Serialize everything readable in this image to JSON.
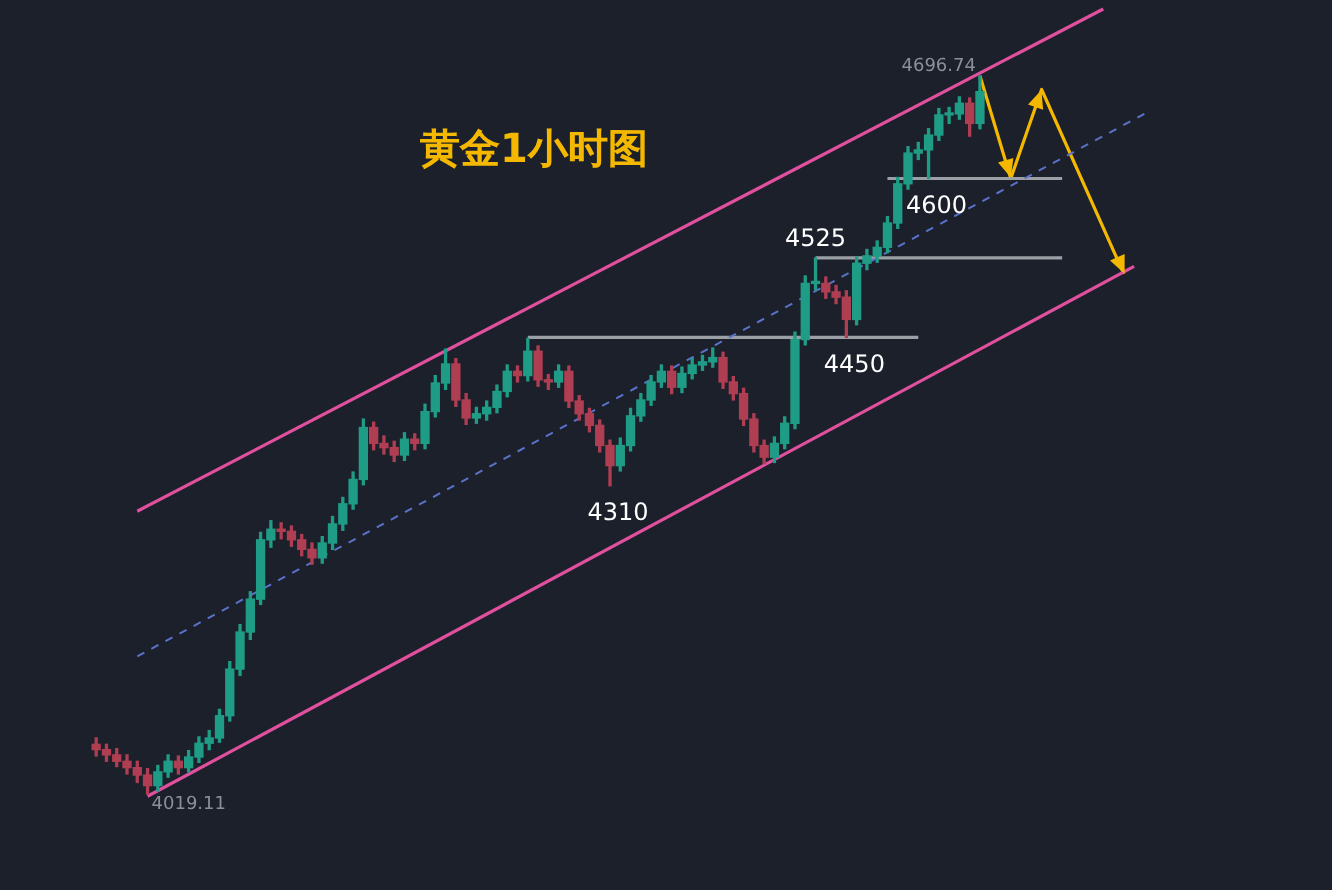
{
  "chart_data": {
    "type": "candlestick",
    "title": "黄金1小时图",
    "tick_labels": false,
    "legend": false,
    "categories": [
      null,
      null,
      null,
      null,
      null,
      null,
      null,
      null,
      null,
      null,
      null,
      null,
      null,
      null,
      null,
      null,
      null,
      null,
      null,
      null,
      null,
      null,
      null,
      null,
      null,
      null,
      null,
      null,
      null,
      null,
      null,
      null,
      null,
      null,
      null,
      null,
      null,
      null,
      null,
      null,
      null,
      null,
      null,
      null,
      null,
      null,
      null,
      null,
      null,
      null,
      null,
      null,
      null,
      null,
      null,
      null,
      null,
      null,
      null,
      null,
      null,
      null,
      null,
      null,
      null,
      null,
      null,
      null,
      null,
      null,
      null,
      null,
      null,
      null,
      null,
      null,
      null,
      null,
      null,
      null,
      null,
      null,
      null,
      null,
      null,
      null,
      null,
      null,
      null,
      null,
      null,
      null,
      null,
      null,
      null,
      null,
      null,
      null,
      null,
      null,
      null,
      null,
      null,
      null,
      null,
      null,
      null,
      null,
      null,
      null,
      null
    ],
    "ohlc": [
      [
        4066,
        4072,
        4055,
        4061
      ],
      [
        4061,
        4066,
        4050,
        4056
      ],
      [
        4056,
        4062,
        4045,
        4050
      ],
      [
        4050,
        4056,
        4038,
        4044
      ],
      [
        4044,
        4050,
        4030,
        4037
      ],
      [
        4037,
        4043,
        4019.11,
        4027
      ],
      [
        4027,
        4046,
        4022,
        4040
      ],
      [
        4040,
        4056,
        4035,
        4050
      ],
      [
        4050,
        4055,
        4038,
        4044
      ],
      [
        4044,
        4060,
        4040,
        4054
      ],
      [
        4054,
        4073,
        4049,
        4067
      ],
      [
        4067,
        4079,
        4061,
        4072
      ],
      [
        4072,
        4099,
        4068,
        4093
      ],
      [
        4093,
        4144,
        4088,
        4137
      ],
      [
        4137,
        4179,
        4131,
        4172
      ],
      [
        4172,
        4210,
        4165,
        4203
      ],
      [
        4203,
        4266,
        4198,
        4259
      ],
      [
        4259,
        4277,
        4252,
        4269
      ],
      [
        4269,
        4275,
        4260,
        4267
      ],
      [
        4267,
        4272,
        4253,
        4259
      ],
      [
        4259,
        4264,
        4244,
        4250
      ],
      [
        4250,
        4256,
        4236,
        4242
      ],
      [
        4242,
        4262,
        4237,
        4256
      ],
      [
        4256,
        4281,
        4250,
        4274
      ],
      [
        4274,
        4299,
        4268,
        4293
      ],
      [
        4293,
        4323,
        4288,
        4316
      ],
      [
        4316,
        4373,
        4311,
        4365
      ],
      [
        4365,
        4370,
        4344,
        4350
      ],
      [
        4350,
        4357,
        4340,
        4346
      ],
      [
        4346,
        4352,
        4333,
        4339
      ],
      [
        4339,
        4360,
        4334,
        4354
      ],
      [
        4354,
        4359,
        4344,
        4350
      ],
      [
        4350,
        4387,
        4345,
        4380
      ],
      [
        4380,
        4414,
        4375,
        4407
      ],
      [
        4407,
        4439,
        4401,
        4425
      ],
      [
        4425,
        4430,
        4385,
        4391
      ],
      [
        4391,
        4397,
        4368,
        4374
      ],
      [
        4374,
        4384,
        4369,
        4378
      ],
      [
        4378,
        4390,
        4372,
        4384
      ],
      [
        4384,
        4405,
        4379,
        4399
      ],
      [
        4399,
        4424,
        4394,
        4418
      ],
      [
        4418,
        4423,
        4408,
        4414
      ],
      [
        4414,
        4449,
        4409,
        4437
      ],
      [
        4437,
        4442,
        4404,
        4410
      ],
      [
        4410,
        4415,
        4401,
        4408
      ],
      [
        4408,
        4424,
        4403,
        4418
      ],
      [
        4418,
        4423,
        4384,
        4390
      ],
      [
        4390,
        4395,
        4372,
        4378
      ],
      [
        4378,
        4383,
        4361,
        4367
      ],
      [
        4367,
        4372,
        4342,
        4348
      ],
      [
        4348,
        4353,
        4310,
        4329
      ],
      [
        4329,
        4355,
        4324,
        4348
      ],
      [
        4348,
        4383,
        4343,
        4376
      ],
      [
        4376,
        4397,
        4371,
        4391
      ],
      [
        4391,
        4414,
        4386,
        4408
      ],
      [
        4408,
        4424,
        4403,
        4418
      ],
      [
        4418,
        4423,
        4397,
        4403
      ],
      [
        4403,
        4422,
        4398,
        4416
      ],
      [
        4416,
        4430,
        4411,
        4424
      ],
      [
        4424,
        4433,
        4419,
        4427
      ],
      [
        4427,
        4440,
        4422,
        4431
      ],
      [
        4431,
        4436,
        4402,
        4408
      ],
      [
        4408,
        4413,
        4391,
        4397
      ],
      [
        4397,
        4402,
        4367,
        4373
      ],
      [
        4373,
        4378,
        4342,
        4348
      ],
      [
        4348,
        4353,
        4331,
        4337
      ],
      [
        4337,
        4356,
        4332,
        4350
      ],
      [
        4350,
        4375,
        4345,
        4369
      ],
      [
        4369,
        4455,
        4364,
        4448
      ],
      [
        4448,
        4508,
        4443,
        4501
      ],
      [
        4501,
        4525,
        4495,
        4501
      ],
      [
        4501,
        4507,
        4487,
        4493
      ],
      [
        4493,
        4499,
        4482,
        4488
      ],
      [
        4488,
        4494,
        4450,
        4467
      ],
      [
        4467,
        4526,
        4462,
        4520
      ],
      [
        4520,
        4533,
        4514,
        4527
      ],
      [
        4527,
        4541,
        4521,
        4535
      ],
      [
        4535,
        4564,
        4530,
        4558
      ],
      [
        4558,
        4601,
        4553,
        4595
      ],
      [
        4595,
        4630,
        4590,
        4624
      ],
      [
        4624,
        4634,
        4618,
        4627
      ],
      [
        4627,
        4647,
        4600,
        4641
      ],
      [
        4641,
        4666,
        4636,
        4660
      ],
      [
        4660,
        4667,
        4652,
        4661
      ],
      [
        4661,
        4677,
        4656,
        4671
      ],
      [
        4671,
        4676,
        4640,
        4652
      ],
      [
        4652,
        4696.74,
        4647,
        4682
      ],
      null,
      null,
      null,
      null,
      null,
      null,
      null,
      null,
      null,
      null,
      null,
      null,
      null,
      null,
      null,
      null,
      null,
      null,
      null,
      null,
      null,
      null,
      null,
      null
    ],
    "series": [
      {
        "type": "line",
        "color": "#e0509e",
        "line_style": "solid",
        "values": [
          null,
          null,
          null,
          null,
          4286,
          null,
          null,
          null,
          null,
          null,
          null,
          null,
          null,
          null,
          null,
          null,
          null,
          null,
          null,
          null,
          null,
          null,
          null,
          null,
          null,
          null,
          null,
          null,
          null,
          null,
          null,
          null,
          null,
          null,
          null,
          null,
          null,
          null,
          null,
          null,
          null,
          null,
          null,
          null,
          null,
          null,
          null,
          null,
          null,
          null,
          null,
          null,
          null,
          null,
          null,
          null,
          null,
          null,
          null,
          null,
          null,
          null,
          null,
          null,
          null,
          null,
          null,
          null,
          null,
          null,
          null,
          null,
          null,
          null,
          null,
          null,
          null,
          null,
          null,
          null,
          null,
          null,
          null,
          null,
          null,
          null,
          null,
          null,
          null,
          null,
          null,
          null,
          null,
          null,
          null,
          null,
          null,
          null,
          4760,
          null,
          null,
          null,
          null,
          null,
          null,
          null,
          null,
          null,
          null,
          null,
          null
        ]
      },
      {
        "type": "line",
        "color": "#e0509e",
        "line_style": "solid",
        "values": [
          null,
          null,
          null,
          null,
          null,
          4017,
          null,
          null,
          null,
          null,
          null,
          null,
          null,
          null,
          null,
          null,
          null,
          null,
          null,
          null,
          null,
          null,
          null,
          null,
          null,
          null,
          null,
          null,
          null,
          null,
          null,
          null,
          null,
          null,
          null,
          null,
          null,
          null,
          null,
          null,
          null,
          null,
          null,
          null,
          null,
          null,
          null,
          null,
          null,
          null,
          null,
          null,
          null,
          null,
          null,
          null,
          null,
          null,
          null,
          null,
          null,
          null,
          null,
          null,
          null,
          null,
          null,
          null,
          null,
          null,
          null,
          null,
          null,
          null,
          null,
          null,
          null,
          null,
          null,
          null,
          null,
          null,
          null,
          null,
          null,
          null,
          null,
          null,
          null,
          null,
          null,
          null,
          null,
          null,
          null,
          null,
          null,
          null,
          null,
          null,
          null,
          4517,
          null,
          null,
          null,
          null,
          null,
          null,
          null,
          null,
          null
        ]
      },
      {
        "type": "line",
        "color": "#5a72c9",
        "line_style": "dashed",
        "values": [
          null,
          null,
          null,
          null,
          4149,
          null,
          null,
          null,
          null,
          null,
          null,
          null,
          null,
          null,
          null,
          null,
          null,
          null,
          null,
          null,
          null,
          null,
          null,
          null,
          null,
          null,
          null,
          null,
          null,
          null,
          null,
          null,
          null,
          null,
          null,
          null,
          null,
          null,
          null,
          null,
          null,
          null,
          null,
          null,
          null,
          null,
          null,
          null,
          null,
          null,
          null,
          null,
          null,
          null,
          null,
          null,
          null,
          null,
          null,
          null,
          null,
          null,
          null,
          null,
          null,
          null,
          null,
          null,
          null,
          null,
          null,
          null,
          null,
          null,
          null,
          null,
          null,
          null,
          null,
          null,
          null,
          null,
          null,
          null,
          null,
          null,
          null,
          null,
          null,
          null,
          null,
          null,
          null,
          null,
          null,
          null,
          null,
          null,
          null,
          null,
          null,
          null,
          4661,
          null,
          null,
          null,
          null,
          null,
          null,
          null,
          null
        ]
      },
      {
        "type": "line",
        "color": "#9aa0a6",
        "line_style": "solid",
        "values": [
          null,
          null,
          null,
          null,
          null,
          null,
          null,
          null,
          null,
          null,
          null,
          null,
          null,
          null,
          null,
          null,
          null,
          null,
          null,
          null,
          null,
          null,
          null,
          null,
          null,
          null,
          null,
          null,
          null,
          null,
          null,
          null,
          null,
          null,
          null,
          null,
          null,
          null,
          null,
          null,
          null,
          null,
          null,
          null,
          null,
          null,
          null,
          null,
          null,
          null,
          null,
          null,
          null,
          null,
          null,
          null,
          null,
          null,
          null,
          null,
          null,
          null,
          null,
          null,
          null,
          null,
          null,
          null,
          null,
          null,
          null,
          null,
          null,
          null,
          null,
          null,
          null,
          4600,
          null,
          null,
          null,
          null,
          null,
          null,
          null,
          null,
          null,
          null,
          null,
          null,
          null,
          null,
          null,
          null,
          4600,
          null,
          null,
          null,
          null,
          null,
          null,
          null,
          null,
          null,
          null,
          null,
          null,
          null,
          null,
          null,
          null
        ]
      },
      {
        "type": "line",
        "color": "#9aa0a6",
        "line_style": "solid",
        "values": [
          null,
          null,
          null,
          null,
          null,
          null,
          null,
          null,
          null,
          null,
          null,
          null,
          null,
          null,
          null,
          null,
          null,
          null,
          null,
          null,
          null,
          null,
          null,
          null,
          null,
          null,
          null,
          null,
          null,
          null,
          null,
          null,
          null,
          null,
          null,
          null,
          null,
          null,
          null,
          null,
          null,
          null,
          null,
          null,
          null,
          null,
          null,
          null,
          null,
          null,
          null,
          null,
          null,
          null,
          null,
          null,
          null,
          null,
          null,
          null,
          null,
          null,
          null,
          null,
          null,
          null,
          null,
          null,
          null,
          null,
          4525,
          null,
          null,
          null,
          null,
          null,
          null,
          null,
          null,
          null,
          null,
          null,
          null,
          null,
          null,
          null,
          null,
          null,
          null,
          null,
          null,
          null,
          null,
          null,
          4525,
          null,
          null,
          null,
          null,
          null,
          null,
          null,
          null,
          null,
          null,
          null,
          null,
          null,
          null,
          null,
          null
        ]
      },
      {
        "type": "line",
        "color": "#9aa0a6",
        "line_style": "solid",
        "values": [
          null,
          null,
          null,
          null,
          null,
          null,
          null,
          null,
          null,
          null,
          null,
          null,
          null,
          null,
          null,
          null,
          null,
          null,
          null,
          null,
          null,
          null,
          null,
          null,
          null,
          null,
          null,
          null,
          null,
          null,
          null,
          null,
          null,
          null,
          null,
          null,
          null,
          null,
          null,
          null,
          null,
          null,
          4450,
          null,
          null,
          null,
          null,
          null,
          null,
          null,
          null,
          null,
          null,
          null,
          null,
          null,
          null,
          null,
          null,
          null,
          null,
          null,
          null,
          null,
          null,
          null,
          null,
          null,
          null,
          null,
          null,
          null,
          null,
          null,
          null,
          null,
          null,
          null,
          null,
          null,
          4450,
          null,
          null,
          null,
          null,
          null,
          null,
          null,
          null,
          null,
          null,
          null,
          null,
          null,
          null,
          null,
          null,
          null,
          null,
          null,
          null,
          null,
          null,
          null,
          null,
          null,
          null,
          null,
          null,
          null,
          null
        ]
      },
      {
        "type": "line",
        "color": "#f5b800",
        "line_style": "solid",
        "values": [
          null,
          null,
          null,
          null,
          null,
          null,
          null,
          null,
          null,
          null,
          null,
          null,
          null,
          null,
          null,
          null,
          null,
          null,
          null,
          null,
          null,
          null,
          null,
          null,
          null,
          null,
          null,
          null,
          null,
          null,
          null,
          null,
          null,
          null,
          null,
          null,
          null,
          null,
          null,
          null,
          null,
          null,
          null,
          null,
          null,
          null,
          null,
          null,
          null,
          null,
          null,
          null,
          null,
          null,
          null,
          null,
          null,
          null,
          null,
          null,
          null,
          null,
          null,
          null,
          null,
          null,
          null,
          null,
          null,
          null,
          null,
          null,
          null,
          null,
          null,
          null,
          null,
          null,
          null,
          null,
          null,
          null,
          null,
          null,
          null,
          null,
          4697,
          null,
          null,
          4600,
          null,
          null,
          4684,
          null,
          null,
          null,
          null,
          null,
          null,
          null,
          4510,
          null,
          null,
          null,
          null,
          null,
          null,
          null,
          null,
          null,
          null
        ]
      }
    ],
    "annotations": [
      "4696.74",
      "4019.11",
      {
        "text": "4310",
        "y": 4310
      },
      {
        "text": "4450",
        "y": 4450
      },
      {
        "text": "4525",
        "y": 4525
      },
      {
        "text": "4600",
        "y": 4600
      }
    ]
  }
}
